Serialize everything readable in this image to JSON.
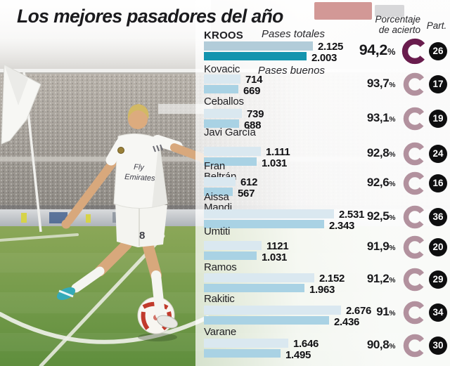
{
  "title": "Los mejores pasadores del año",
  "panel": {
    "series_total_label": "Pases totales",
    "series_good_label": "Pases buenos",
    "accuracy_header": "Porcentaje\nde acierto",
    "participation_header": "Part.",
    "percent_sign": "%"
  },
  "colors": {
    "bar_total": "#dae8f0",
    "bar_good": "#a9d2e4",
    "bar_total_highlight": "#b2ccd9",
    "bar_good_highlight": "#1494ae",
    "ring": "#b2919e",
    "ring_highlight": "#691c4d",
    "badge_bg": "#0e0e0f"
  },
  "photo": {
    "jersey_line1": "Fly",
    "jersey_line2": "Emirates",
    "shorts_number": "8"
  },
  "chart_data": {
    "type": "bar",
    "title": "Los mejores pasadores del año",
    "series": [
      "Pases totales",
      "Pases buenos"
    ],
    "legend_position": "top",
    "players": [
      {
        "name": "KROOS",
        "total": 2125,
        "good": 2003,
        "total_display": "2.125",
        "good_display": "2.003",
        "accuracy": 94.2,
        "accuracy_display": "94,2",
        "participation": "26",
        "highlight": true
      },
      {
        "name": "Kovacic",
        "total": 714,
        "good": 669,
        "total_display": "714",
        "good_display": "669",
        "accuracy": 93.7,
        "accuracy_display": "93,7",
        "participation": "17",
        "highlight": false
      },
      {
        "name": "Ceballos",
        "total": 739,
        "good": 688,
        "total_display": "739",
        "good_display": "688",
        "accuracy": 93.1,
        "accuracy_display": "93,1",
        "participation": "19",
        "highlight": false
      },
      {
        "name": "Javi García",
        "total": 1111,
        "good": 1031,
        "total_display": "1.111",
        "good_display": "1.031",
        "accuracy": 92.8,
        "accuracy_display": "92,8",
        "participation": "24",
        "highlight": false
      },
      {
        "name": "Fran Beltrán",
        "total": 612,
        "good": 567,
        "total_display": "612",
        "good_display": "567",
        "accuracy": 92.6,
        "accuracy_display": "92,6",
        "participation": "16",
        "highlight": false
      },
      {
        "name": "Aissa Mandi",
        "total": 2531,
        "good": 2343,
        "total_display": "2.531",
        "good_display": "2.343",
        "accuracy": 92.5,
        "accuracy_display": "92,5",
        "participation": "36",
        "highlight": false
      },
      {
        "name": "Umtiti",
        "total": 1121,
        "good": 1031,
        "total_display": "1121",
        "good_display": "1.031",
        "accuracy": 91.9,
        "accuracy_display": "91,9",
        "participation": "20",
        "highlight": false
      },
      {
        "name": "Ramos",
        "total": 2152,
        "good": 1963,
        "total_display": "2.152",
        "good_display": "1.963",
        "accuracy": 91.2,
        "accuracy_display": "91,2",
        "participation": "29",
        "highlight": false
      },
      {
        "name": "Rakitic",
        "total": 2676,
        "good": 2436,
        "total_display": "2.676",
        "good_display": "2.436",
        "accuracy": 91.0,
        "accuracy_display": "91",
        "participation": "34",
        "highlight": false
      },
      {
        "name": "Varane",
        "total": 1646,
        "good": 1495,
        "total_display": "1.646",
        "good_display": "1.495",
        "accuracy": 90.8,
        "accuracy_display": "90,8",
        "participation": "30",
        "highlight": false
      }
    ]
  }
}
